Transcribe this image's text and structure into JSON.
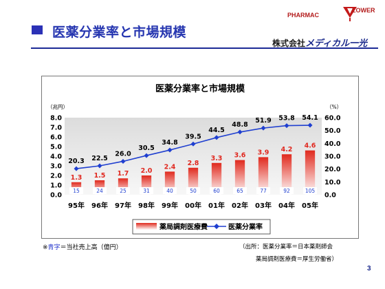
{
  "header": {
    "title": "医薬分業率と市場規模",
    "logo_line1": "PHARMAC",
    "logo_line2": "LOWER",
    "company_prefix": "株式会社",
    "company_brand": "メディカル一光"
  },
  "colors": {
    "title_blue": "#2636b0",
    "bar_red": "#e0281f",
    "line_blue": "#1f3fd0",
    "bar_label_red": "#e0281f",
    "inner_label_blue": "#1f3fd0"
  },
  "chart_data": {
    "type": "bar",
    "title": "医薬分業率と市場規模",
    "y_left_unit": "（兆円）",
    "y_right_unit": "（%）",
    "ylim_left": [
      0,
      8
    ],
    "ylim_right": [
      0,
      60
    ],
    "y_left_ticks": [
      "8.0",
      "7.0",
      "6.0",
      "5.0",
      "4.0",
      "3.0",
      "2.0",
      "1.0",
      "0.0"
    ],
    "y_right_ticks": [
      "60.0",
      "50.0",
      "40.0",
      "30.0",
      "20.0",
      "10.0",
      "0.0"
    ],
    "categories": [
      "95年",
      "96年",
      "97年",
      "98年",
      "99年",
      "00年",
      "01年",
      "02年",
      "03年",
      "04年",
      "05年"
    ],
    "series": [
      {
        "name": "薬局調剤医療費",
        "type": "bar",
        "axis": "left",
        "values": [
          1.3,
          1.5,
          1.7,
          2.0,
          2.4,
          2.8,
          3.3,
          3.6,
          3.9,
          4.2,
          4.6
        ],
        "value_labels": [
          "1.3",
          "1.5",
          "1.7",
          "2.0",
          "2.4",
          "2.8",
          "3.3",
          "3.6",
          "3.9",
          "4.2",
          "4.6"
        ]
      },
      {
        "name": "医薬分業率",
        "type": "line",
        "axis": "right",
        "values": [
          20.3,
          22.5,
          26.0,
          30.5,
          34.8,
          39.5,
          44.5,
          48.8,
          51.9,
          53.8,
          54.1
        ],
        "value_labels": [
          "20.3",
          "22.5",
          "26.0",
          "30.5",
          "34.8",
          "39.5",
          "44.5",
          "48.8",
          "51.9",
          "53.8",
          "54.1"
        ]
      }
    ],
    "inner_labels": [
      "15",
      "24",
      "25",
      "31",
      "40",
      "50",
      "60",
      "65",
      "77",
      "92",
      "105"
    ],
    "legend_position": "bottom",
    "grid": false
  },
  "footnotes": {
    "left_prefix": "※",
    "left_blue": "青字",
    "left_suffix": "＝当社売上高（億円）",
    "source_line1": "（出所：医薬分業率＝日本薬剤師会",
    "source_line2": "薬局調剤医療費＝厚生労働省）"
  },
  "page_number": "3"
}
